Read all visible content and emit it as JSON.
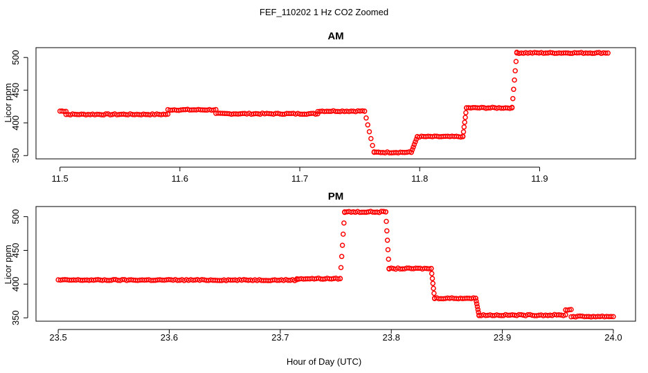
{
  "title": "FEF_110202  1 Hz CO2 Zoomed",
  "xlabel": "Hour of Day (UTC)",
  "chart_data": [
    {
      "type": "scatter",
      "title": "AM",
      "ylabel": "Licor ppm",
      "xlim": [
        11.48,
        11.98
      ],
      "ylim": [
        345,
        515
      ],
      "xticks": [
        "11.5",
        "11.6",
        "11.7",
        "11.8",
        "11.9"
      ],
      "yticks": [
        "350",
        "400",
        "450",
        "500"
      ],
      "grid": false,
      "color": "#ff0000",
      "marker": "open-circle",
      "profile": [
        {
          "x": [
            11.5,
            11.505
          ],
          "y": 418
        },
        {
          "x": [
            11.505,
            11.59
          ],
          "y": 413
        },
        {
          "x": [
            11.59,
            11.63
          ],
          "y": 420
        },
        {
          "x": [
            11.63,
            11.715
          ],
          "y": 414
        },
        {
          "x": [
            11.715,
            11.754
          ],
          "y": 418
        },
        {
          "x": [
            11.754,
            11.762
          ],
          "y": [
            418,
            355
          ]
        },
        {
          "x": [
            11.762,
            11.793
          ],
          "y": 355
        },
        {
          "x": [
            11.793,
            11.798
          ],
          "y": [
            355,
            379
          ]
        },
        {
          "x": [
            11.798,
            11.836
          ],
          "y": 379
        },
        {
          "x": [
            11.836,
            11.839
          ],
          "y": [
            379,
            423
          ]
        },
        {
          "x": [
            11.839,
            11.877
          ],
          "y": 423
        },
        {
          "x": [
            11.877,
            11.881
          ],
          "y": [
            423,
            508
          ]
        },
        {
          "x": [
            11.881,
            11.957
          ],
          "y": 507
        }
      ]
    },
    {
      "type": "scatter",
      "title": "PM",
      "ylabel": "Licor ppm",
      "xlim": [
        23.48,
        24.02
      ],
      "ylim": [
        345,
        515
      ],
      "xticks": [
        "23.5",
        "23.6",
        "23.7",
        "23.8",
        "23.9",
        "24.0"
      ],
      "yticks": [
        "350",
        "400",
        "450",
        "500"
      ],
      "grid": false,
      "color": "#ff0000",
      "marker": "open-circle",
      "profile": [
        {
          "x": [
            23.5,
            23.715
          ],
          "y": 406
        },
        {
          "x": [
            23.715,
            23.754
          ],
          "y": 408
        },
        {
          "x": [
            23.754,
            23.758
          ],
          "y": [
            408,
            507
          ]
        },
        {
          "x": [
            23.758,
            23.795
          ],
          "y": 507
        },
        {
          "x": [
            23.795,
            23.798
          ],
          "y": [
            507,
            423
          ]
        },
        {
          "x": [
            23.798,
            23.836
          ],
          "y": 423
        },
        {
          "x": [
            23.836,
            23.839
          ],
          "y": [
            423,
            379
          ]
        },
        {
          "x": [
            23.839,
            23.876
          ],
          "y": 379
        },
        {
          "x": [
            23.876,
            23.879
          ],
          "y": [
            379,
            354
          ]
        },
        {
          "x": [
            23.879,
            23.957
          ],
          "y": 354
        },
        {
          "x": [
            23.957,
            23.962
          ],
          "y": 362
        },
        {
          "x": [
            23.962,
            24.0
          ],
          "y": 352
        }
      ]
    }
  ]
}
